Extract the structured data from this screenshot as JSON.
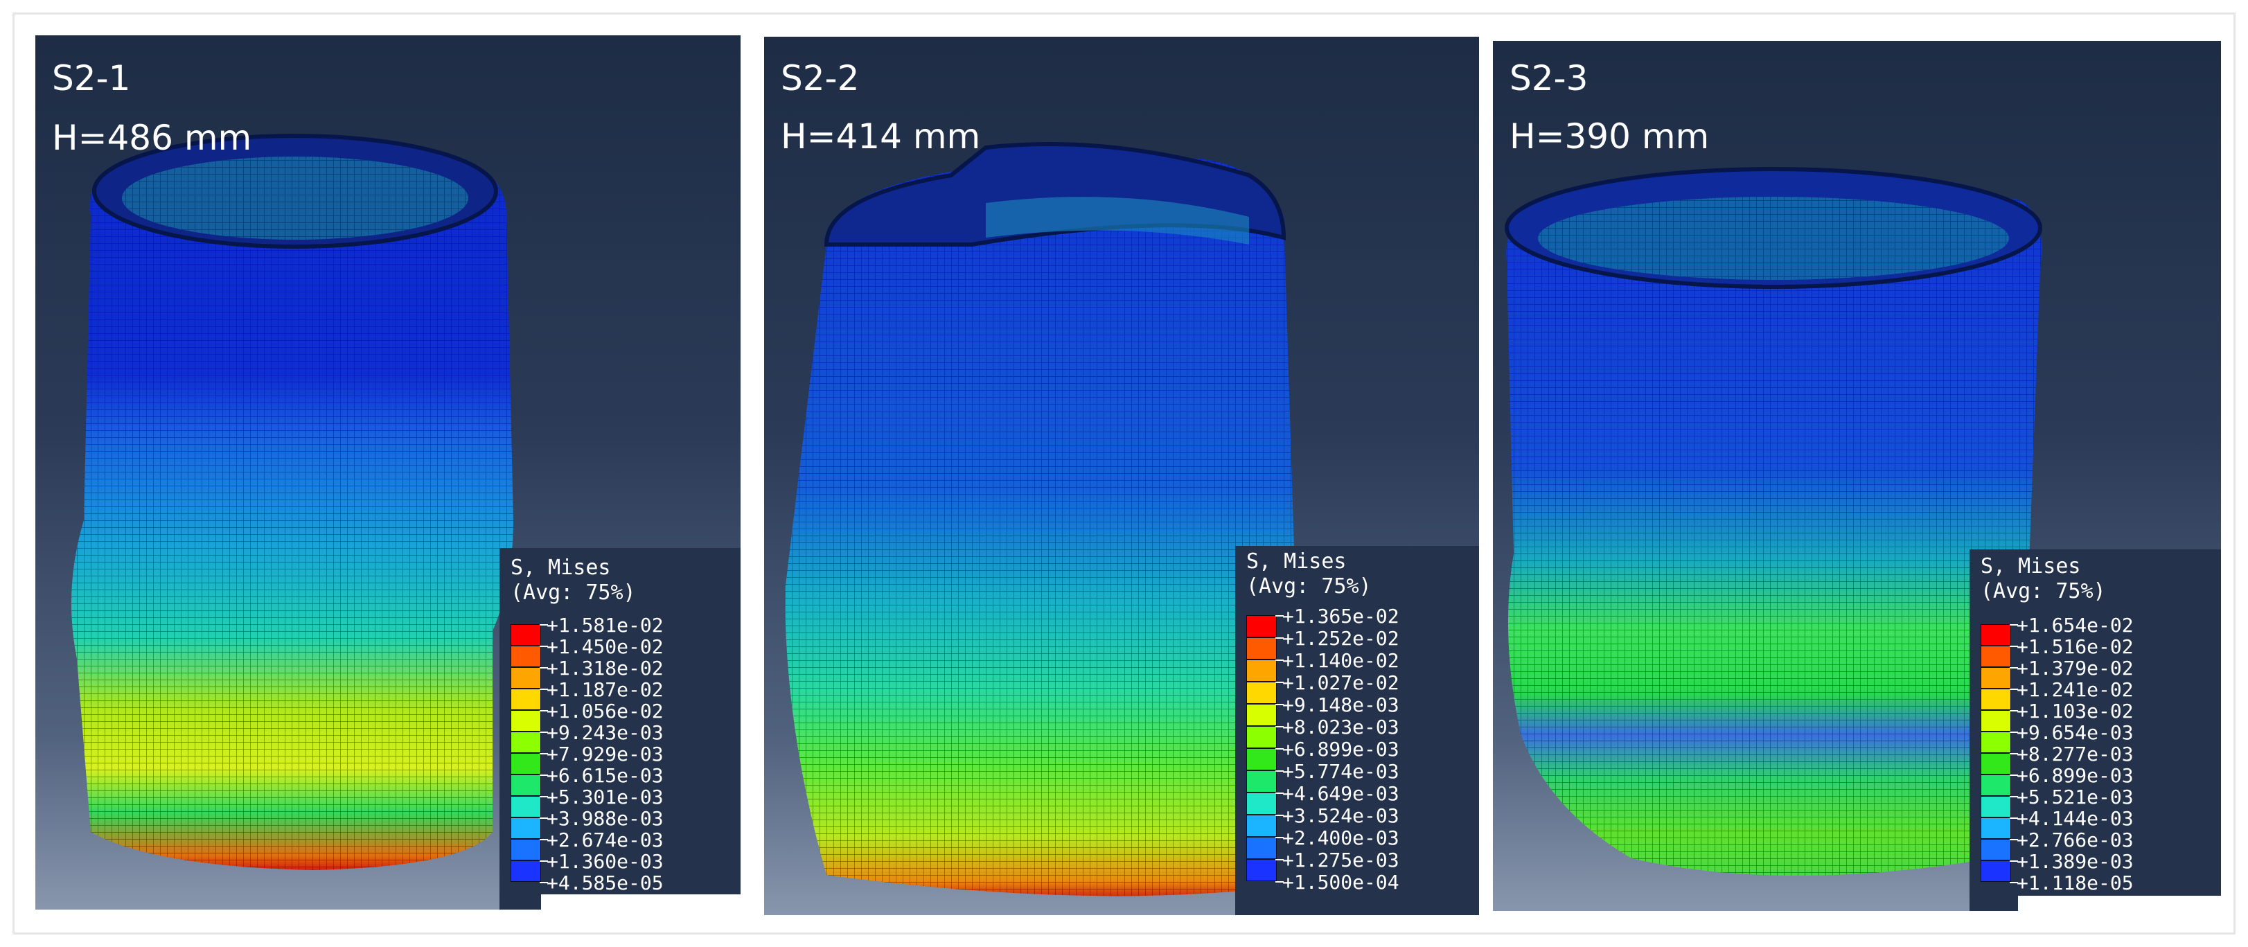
{
  "panels": [
    {
      "id": "s2-1",
      "label": "S2-1",
      "height_label": "H=486 mm",
      "legend": {
        "title": "S, Mises",
        "subtitle": "(Avg: 75%)",
        "values": [
          "+1.581e-02",
          "+1.450e-02",
          "+1.318e-02",
          "+1.187e-02",
          "+1.056e-02",
          "+9.243e-03",
          "+7.929e-03",
          "+6.615e-03",
          "+5.301e-03",
          "+3.988e-03",
          "+2.674e-03",
          "+1.360e-03",
          "+4.585e-05"
        ]
      }
    },
    {
      "id": "s2-2",
      "label": "S2-2",
      "height_label": "H=414 mm",
      "legend": {
        "title": "S, Mises",
        "subtitle": "(Avg: 75%)",
        "values": [
          "+1.365e-02",
          "+1.252e-02",
          "+1.140e-02",
          "+1.027e-02",
          "+9.148e-03",
          "+8.023e-03",
          "+6.899e-03",
          "+5.774e-03",
          "+4.649e-03",
          "+3.524e-03",
          "+2.400e-03",
          "+1.275e-03",
          "+1.500e-04"
        ]
      }
    },
    {
      "id": "s2-3",
      "label": "S2-3",
      "height_label": "H=390 mm",
      "legend": {
        "title": "S, Mises",
        "subtitle": "(Avg: 75%)",
        "values": [
          "+1.654e-02",
          "+1.516e-02",
          "+1.379e-02",
          "+1.241e-02",
          "+1.103e-02",
          "+9.654e-03",
          "+8.277e-03",
          "+6.899e-03",
          "+5.521e-03",
          "+4.144e-03",
          "+2.766e-03",
          "+1.389e-03",
          "+1.118e-05"
        ]
      }
    }
  ],
  "legend_colors": [
    "#ff0000",
    "#ff5a00",
    "#ffa500",
    "#ffd800",
    "#d8ff00",
    "#8cff00",
    "#33e81a",
    "#1ee86a",
    "#1ee8c8",
    "#1ab4ff",
    "#1a73ff",
    "#1a33ff",
    "#0000ff"
  ]
}
